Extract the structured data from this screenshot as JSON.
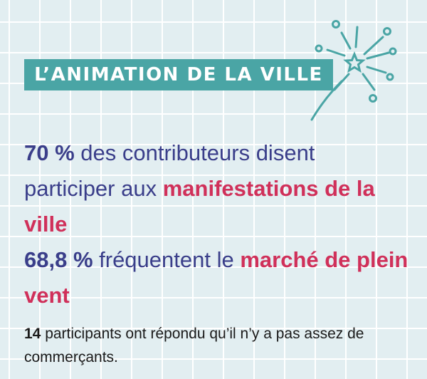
{
  "banner": {
    "title": "L’ANIMATION DE LA VILLE"
  },
  "colors": {
    "teal": "#4aa5a5",
    "navy": "#3a3e8a",
    "pink": "#d0305a",
    "grid_bg": "#e2eef1"
  },
  "icons": {
    "decoration": "firework-icon"
  },
  "stats": [
    {
      "value": "70 %",
      "text_a": " des contributeurs disent participer aux ",
      "highlight": "manifestations de la ville"
    },
    {
      "value": "68,8 %",
      "text_a": " fréquentent le ",
      "highlight": "marché de plein vent"
    }
  ],
  "note": {
    "value": "14",
    "text": " participants ont répondu qu’il n’y a pas assez de commerçants."
  }
}
